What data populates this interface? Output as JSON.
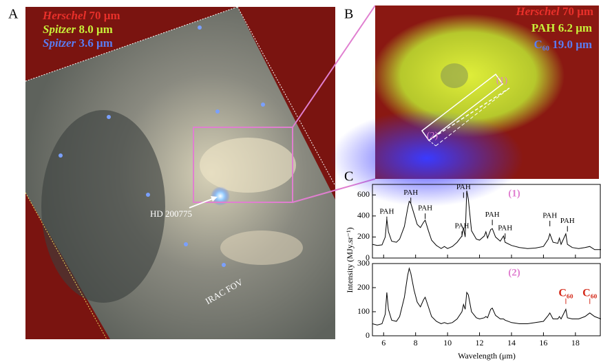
{
  "figure": {
    "panel_labels": [
      "A",
      "B",
      "C"
    ],
    "panel_a": {
      "legend": [
        {
          "instrument": "Herschel",
          "band": "70 μm",
          "color": "#e8302a"
        },
        {
          "instrument": "Spitzer",
          "band": "8.0 μm",
          "color": "#c8f03a"
        },
        {
          "instrument": "Spitzer",
          "band": "3.6 μm",
          "color": "#5a7cf0"
        }
      ],
      "star_label": "HD 200775",
      "fov_label": "IRAC FOV"
    },
    "panel_b": {
      "legend": [
        {
          "instrument": "Herschel",
          "band": "70 μm",
          "color": "#e8302a"
        },
        {
          "tracer": "PAH",
          "band": "6.2 μm",
          "color": "#c8f03a"
        },
        {
          "tracer": "C₆₀",
          "band": "19.0 μm",
          "color": "#5a7cf0"
        }
      ],
      "regions": [
        "(1)",
        "(2)"
      ]
    },
    "y_label": "Intensity (MJy.sr⁻¹)"
  },
  "chart_data": [
    {
      "type": "line",
      "panel_label": "(1)",
      "x": [
        5.3,
        5.6,
        5.9,
        6.1,
        6.2,
        6.3,
        6.5,
        6.8,
        7.0,
        7.3,
        7.5,
        7.6,
        7.7,
        7.9,
        8.1,
        8.3,
        8.5,
        8.6,
        8.8,
        9.0,
        9.3,
        9.6,
        9.8,
        10.0,
        10.3,
        10.6,
        10.9,
        11.0,
        11.1,
        11.2,
        11.3,
        11.5,
        11.8,
        12.0,
        12.3,
        12.4,
        12.5,
        12.7,
        12.8,
        13.0,
        13.3,
        13.5,
        13.6,
        14.0,
        14.5,
        15.0,
        15.5,
        16.0,
        16.3,
        16.4,
        16.6,
        16.9,
        17.0,
        17.1,
        17.4,
        17.5,
        17.8,
        18.2,
        18.6,
        18.9,
        19.2,
        19.6
      ],
      "series": [
        {
          "color": "#000000",
          "values": [
            130,
            120,
            125,
            200,
            370,
            250,
            160,
            150,
            180,
            300,
            470,
            540,
            520,
            420,
            320,
            290,
            340,
            360,
            260,
            170,
            120,
            90,
            110,
            90,
            110,
            150,
            210,
            290,
            200,
            640,
            560,
            260,
            180,
            170,
            210,
            250,
            190,
            270,
            280,
            200,
            160,
            210,
            150,
            120,
            100,
            90,
            95,
            110,
            180,
            230,
            150,
            140,
            190,
            130,
            230,
            130,
            100,
            90,
            100,
            110,
            80,
            80
          ]
        }
      ],
      "xlim": [
        5.3,
        19.6
      ],
      "ylim": [
        0,
        700
      ],
      "yticks": [
        0,
        200,
        400,
        600
      ],
      "annotations": [
        {
          "text": "PAH",
          "x": 6.2,
          "y": 440,
          "color": "#000000"
        },
        {
          "text": "PAH",
          "x": 7.7,
          "y": 620,
          "color": "#000000"
        },
        {
          "text": "PAH",
          "x": 8.6,
          "y": 470,
          "color": "#000000"
        },
        {
          "text": "PAH",
          "x": 10.9,
          "y": 300,
          "color": "#000000"
        },
        {
          "text": "PAH",
          "x": 11.0,
          "y": 670,
          "color": "#000000"
        },
        {
          "text": "PAH",
          "x": 12.8,
          "y": 410,
          "color": "#000000"
        },
        {
          "text": "PAH",
          "x": 13.6,
          "y": 280,
          "color": "#000000"
        },
        {
          "text": "PAH",
          "x": 16.4,
          "y": 400,
          "color": "#000000"
        },
        {
          "text": "PAH",
          "x": 17.5,
          "y": 350,
          "color": "#000000"
        }
      ],
      "label_color": "#e07fd0"
    },
    {
      "type": "line",
      "panel_label": "(2)",
      "x": [
        5.3,
        5.6,
        5.9,
        6.1,
        6.2,
        6.3,
        6.5,
        6.8,
        7.0,
        7.3,
        7.5,
        7.6,
        7.7,
        7.9,
        8.1,
        8.3,
        8.5,
        8.6,
        8.8,
        9.0,
        9.3,
        9.6,
        9.8,
        10.0,
        10.3,
        10.6,
        10.9,
        11.0,
        11.1,
        11.2,
        11.3,
        11.5,
        11.8,
        12.0,
        12.3,
        12.4,
        12.5,
        12.7,
        12.8,
        13.0,
        13.3,
        13.5,
        13.6,
        14.0,
        14.5,
        15.0,
        15.5,
        16.0,
        16.3,
        16.4,
        16.6,
        16.9,
        17.0,
        17.1,
        17.4,
        17.5,
        17.8,
        18.2,
        18.6,
        18.9,
        19.2,
        19.6
      ],
      "series": [
        {
          "color": "#000000",
          "values": [
            50,
            45,
            50,
            90,
            180,
            110,
            65,
            60,
            80,
            160,
            250,
            280,
            260,
            190,
            140,
            120,
            150,
            160,
            120,
            80,
            60,
            50,
            55,
            50,
            55,
            70,
            100,
            130,
            110,
            180,
            170,
            100,
            75,
            70,
            75,
            80,
            75,
            110,
            115,
            85,
            70,
            70,
            65,
            55,
            50,
            50,
            55,
            60,
            85,
            95,
            70,
            70,
            80,
            70,
            110,
            75,
            70,
            70,
            80,
            95,
            80,
            70
          ]
        }
      ],
      "xlim": [
        5.3,
        19.6
      ],
      "ylim": [
        0,
        300
      ],
      "xticks": [
        6,
        8,
        10,
        12,
        14,
        16,
        18
      ],
      "yticks": [
        0,
        100,
        200,
        300
      ],
      "x_label": "Wavelength (μm)",
      "annotations": [
        {
          "text": "C₆₀",
          "x": 17.4,
          "y": 175,
          "color": "#d42a1a"
        },
        {
          "text": "C₆₀",
          "x": 18.9,
          "y": 175,
          "color": "#d42a1a"
        }
      ],
      "label_color": "#e07fd0"
    }
  ]
}
